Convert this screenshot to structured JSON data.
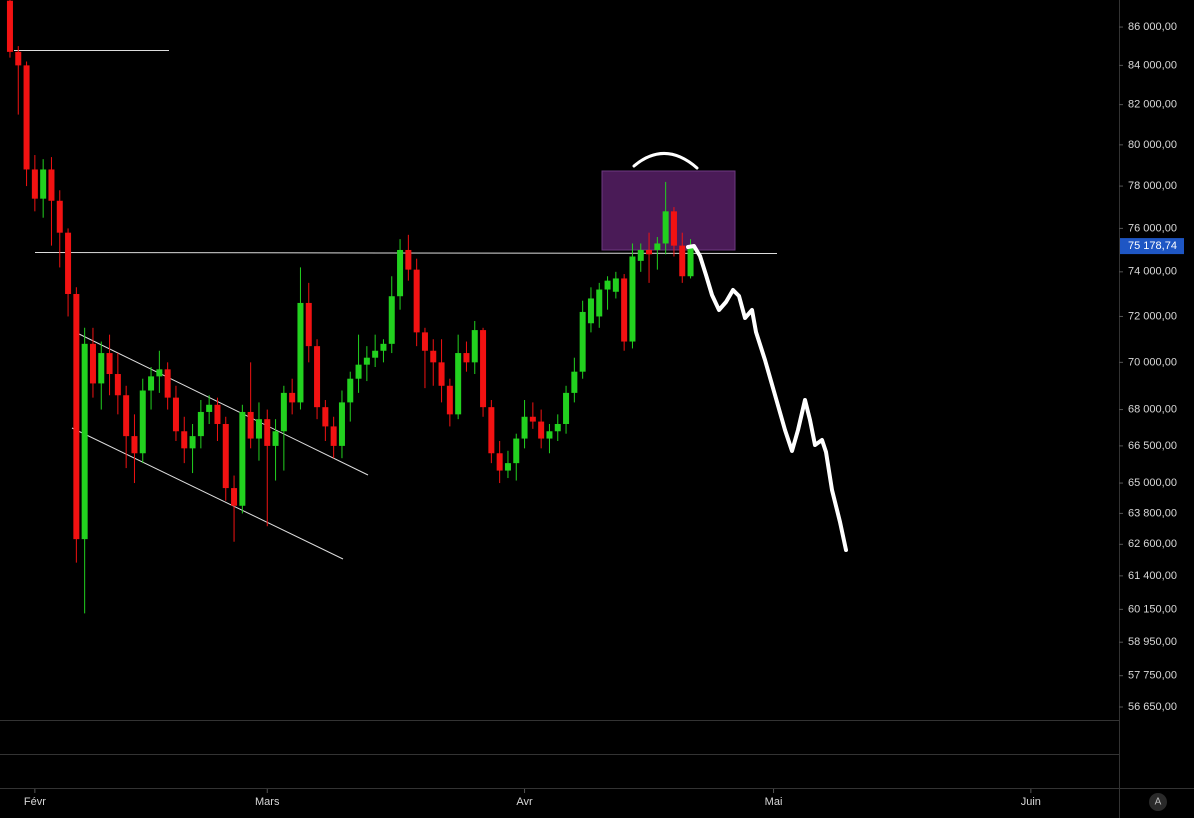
{
  "chart_data": {
    "type": "candlestick",
    "log_scale": true,
    "up_color": "#22d11f",
    "down_color": "#f21212",
    "xlim": [
      -1.2,
      133.5
    ],
    "xticks": [
      {
        "value": 3,
        "label": "Févr"
      },
      {
        "value": 31,
        "label": "Mars"
      },
      {
        "value": 62,
        "label": "Avr"
      },
      {
        "value": 92,
        "label": "Mai"
      },
      {
        "value": 123,
        "label": "Juin"
      }
    ],
    "ylim": [
      56200,
      87440
    ],
    "yticks": [
      {
        "value": 86000,
        "label": "86 000,00"
      },
      {
        "value": 84000,
        "label": "84 000,00"
      },
      {
        "value": 82000,
        "label": "82 000,00"
      },
      {
        "value": 80000,
        "label": "80 000,00"
      },
      {
        "value": 78000,
        "label": "78 000,00"
      },
      {
        "value": 76000,
        "label": "76 000,00"
      },
      {
        "value": 74000,
        "label": "74 000,00"
      },
      {
        "value": 72000,
        "label": "72 000,00"
      },
      {
        "value": 70000,
        "label": "70 000,00"
      },
      {
        "value": 68000,
        "label": "68 000,00"
      },
      {
        "value": 66500,
        "label": "66 500,00"
      },
      {
        "value": 65000,
        "label": "65 000,00"
      },
      {
        "value": 63800,
        "label": "63 800,00"
      },
      {
        "value": 62600,
        "label": "62 600,00"
      },
      {
        "value": 61400,
        "label": "61 400,00"
      },
      {
        "value": 60150,
        "label": "60 150,00"
      },
      {
        "value": 58950,
        "label": "58 950,00"
      },
      {
        "value": 57750,
        "label": "57 750,00"
      },
      {
        "value": 56650,
        "label": "56 650,00"
      }
    ],
    "last_price": {
      "value": 75178.74,
      "label": "75 178,74"
    },
    "auto_button": "A",
    "candles": [
      [
        87400,
        87440,
        84400,
        84700
      ],
      [
        84700,
        85000,
        81500,
        84000
      ],
      [
        84000,
        84200,
        78000,
        78800
      ],
      [
        78800,
        79500,
        76800,
        77400
      ],
      [
        77400,
        79300,
        76500,
        78800
      ],
      [
        78800,
        79400,
        75200,
        77300
      ],
      [
        77300,
        77800,
        74200,
        75800
      ],
      [
        75800,
        76000,
        72000,
        73000
      ],
      [
        73000,
        73300,
        61900,
        62800
      ],
      [
        62800,
        71500,
        60000,
        70800
      ],
      [
        70800,
        71500,
        68500,
        69100
      ],
      [
        69100,
        70900,
        68000,
        70400
      ],
      [
        70400,
        71200,
        68600,
        69500
      ],
      [
        69500,
        70400,
        67800,
        68600
      ],
      [
        68600,
        69000,
        65600,
        66900
      ],
      [
        66900,
        67800,
        65000,
        66200
      ],
      [
        66200,
        69300,
        65800,
        68800
      ],
      [
        68800,
        69800,
        68000,
        69400
      ],
      [
        69400,
        70500,
        68700,
        69700
      ],
      [
        69700,
        70000,
        68000,
        68500
      ],
      [
        68500,
        69000,
        66700,
        67100
      ],
      [
        67100,
        67700,
        65800,
        66400
      ],
      [
        66400,
        67400,
        65400,
        66900
      ],
      [
        66900,
        68400,
        66400,
        67900
      ],
      [
        67900,
        68600,
        67400,
        68200
      ],
      [
        68200,
        68500,
        66700,
        67400
      ],
      [
        67400,
        67700,
        64300,
        64800
      ],
      [
        64800,
        65300,
        62700,
        64100
      ],
      [
        64100,
        68200,
        63800,
        67900
      ],
      [
        67900,
        70000,
        66400,
        66800
      ],
      [
        66800,
        68300,
        65900,
        67600
      ],
      [
        67600,
        68000,
        63300,
        66500
      ],
      [
        66500,
        67600,
        65100,
        67100
      ],
      [
        67100,
        69000,
        65500,
        68700
      ],
      [
        68700,
        69300,
        67800,
        68300
      ],
      [
        68300,
        74200,
        68000,
        72600
      ],
      [
        72600,
        73500,
        70000,
        70700
      ],
      [
        70700,
        71000,
        67600,
        68100
      ],
      [
        68100,
        68400,
        66700,
        67300
      ],
      [
        67300,
        67700,
        66000,
        66500
      ],
      [
        66500,
        68800,
        66000,
        68300
      ],
      [
        68300,
        69600,
        67500,
        69300
      ],
      [
        69300,
        71200,
        68700,
        69900
      ],
      [
        69900,
        70700,
        69200,
        70200
      ],
      [
        70200,
        71200,
        69800,
        70500
      ],
      [
        70500,
        71000,
        70000,
        70800
      ],
      [
        70800,
        73800,
        70400,
        72900
      ],
      [
        72900,
        75500,
        72300,
        75000
      ],
      [
        75000,
        75700,
        73600,
        74100
      ],
      [
        74100,
        74600,
        70700,
        71300
      ],
      [
        71300,
        71500,
        68900,
        70500
      ],
      [
        70500,
        71000,
        69000,
        70000
      ],
      [
        70000,
        71000,
        68300,
        69000
      ],
      [
        69000,
        69300,
        67300,
        67800
      ],
      [
        67800,
        71200,
        67600,
        70400
      ],
      [
        70400,
        70900,
        69600,
        70000
      ],
      [
        70000,
        71800,
        69500,
        71400
      ],
      [
        71400,
        71500,
        67700,
        68100
      ],
      [
        68100,
        68400,
        65800,
        66200
      ],
      [
        66200,
        66700,
        65000,
        65500
      ],
      [
        65500,
        66300,
        65200,
        65800
      ],
      [
        65800,
        67000,
        65100,
        66800
      ],
      [
        66800,
        68400,
        66400,
        67700
      ],
      [
        67700,
        68300,
        67200,
        67500
      ],
      [
        67500,
        68000,
        66400,
        66800
      ],
      [
        66800,
        67400,
        66200,
        67100
      ],
      [
        67100,
        67800,
        66700,
        67400
      ],
      [
        67400,
        69000,
        67000,
        68700
      ],
      [
        68700,
        70200,
        68300,
        69600
      ],
      [
        69600,
        72700,
        69300,
        72200
      ],
      [
        71700,
        73300,
        71300,
        72800
      ],
      [
        72000,
        73500,
        71500,
        73200
      ],
      [
        73200,
        73800,
        72300,
        73600
      ],
      [
        73100,
        74000,
        72800,
        73700
      ],
      [
        73700,
        73900,
        70500,
        70900
      ],
      [
        70900,
        75300,
        70600,
        74700
      ],
      [
        74500,
        75300,
        74000,
        75000
      ],
      [
        75000,
        75800,
        73500,
        74800
      ],
      [
        75000,
        75600,
        74100,
        75300
      ],
      [
        75300,
        78200,
        74800,
        76800
      ],
      [
        76800,
        77000,
        74700,
        75200
      ],
      [
        75200,
        75800,
        73500,
        73800
      ],
      [
        73800,
        75500,
        73700,
        75100
      ]
    ]
  }
}
